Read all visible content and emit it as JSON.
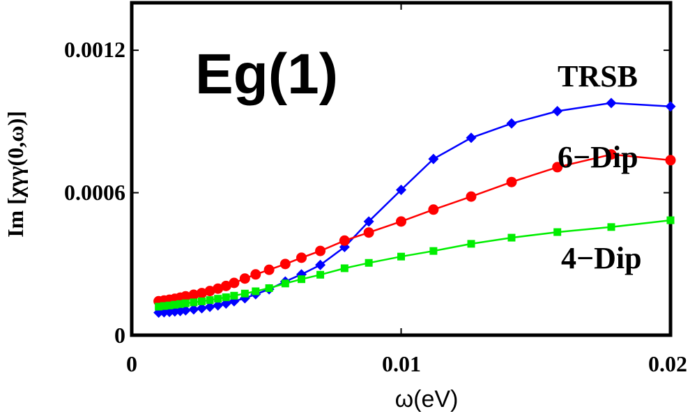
{
  "chart_data": {
    "type": "line",
    "title": "Eg(1)",
    "xlabel": "ω(eV)",
    "ylabel": "Im [χγγ(0,ω)]",
    "xlim": [
      0,
      0.02
    ],
    "ylim": [
      0,
      0.0014
    ],
    "x_ticks": [
      0,
      0.01,
      0.02
    ],
    "x_tick_labels": [
      "0",
      "0.01",
      "0.02"
    ],
    "y_ticks": [
      0,
      0.0006,
      0.0012
    ],
    "y_tick_labels": [
      "0",
      "0.0006",
      "0.0012"
    ],
    "grid": false,
    "series": [
      {
        "name": "TRSB",
        "color": "#0000ff",
        "marker": "diamond",
        "x": [
          0.001,
          0.0012,
          0.0014,
          0.0016,
          0.0018,
          0.002,
          0.0023,
          0.0026,
          0.0029,
          0.0032,
          0.0035,
          0.0038,
          0.0042,
          0.0046,
          0.0051,
          0.0057,
          0.0063,
          0.007,
          0.0079,
          0.0088,
          0.01,
          0.0112,
          0.0126,
          0.0141,
          0.0158,
          0.0178,
          0.02
        ],
        "y": [
          9.51e-05,
          9.65e-05,
          9.8e-05,
          9.99e-05,
          0.0001018,
          0.0001044,
          0.0001086,
          0.0001134,
          0.0001191,
          0.0001253,
          0.0001332,
          0.0001428,
          0.0001557,
          0.0001723,
          0.0001935,
          0.000226,
          0.0002562,
          0.0002957,
          0.0003714,
          0.0004789,
          0.0006119,
          0.0007423,
          0.0008313,
          0.0008918,
          0.0009435,
          0.0009778,
          0.0009636
        ]
      },
      {
        "name": "6−Dip",
        "color": "#ff0000",
        "marker": "circle",
        "x": [
          0.001,
          0.0012,
          0.0014,
          0.0016,
          0.0018,
          0.002,
          0.0023,
          0.0026,
          0.0029,
          0.0032,
          0.0035,
          0.0038,
          0.0042,
          0.0046,
          0.0051,
          0.0057,
          0.0063,
          0.007,
          0.0079,
          0.0088,
          0.01,
          0.0112,
          0.0126,
          0.0141,
          0.0158,
          0.0178,
          0.02
        ],
        "y": [
          0.0001431,
          0.0001459,
          0.0001494,
          0.0001532,
          0.0001581,
          0.0001637,
          0.0001701,
          0.0001773,
          0.000186,
          0.000196,
          0.0002073,
          0.0002201,
          0.0002386,
          0.000256,
          0.0002754,
          0.0002998,
          0.0003262,
          0.0003548,
          0.0003983,
          0.0004323,
          0.0004789,
          0.000529,
          0.0005837,
          0.000645,
          0.0007076,
          0.0007614,
          0.0007369
        ]
      },
      {
        "name": "4−Dip",
        "color": "#00ee00",
        "marker": "square",
        "x": [
          0.001,
          0.0012,
          0.0014,
          0.0016,
          0.0018,
          0.002,
          0.0023,
          0.0026,
          0.0029,
          0.0032,
          0.0035,
          0.0038,
          0.0042,
          0.0046,
          0.0051,
          0.0057,
          0.0063,
          0.007,
          0.0079,
          0.0088,
          0.01,
          0.0112,
          0.0126,
          0.0141,
          0.0158,
          0.0178,
          0.02
        ],
        "y": [
          0.0001201,
          0.0001229,
          0.0001252,
          0.0001283,
          0.0001312,
          0.0001343,
          0.0001381,
          0.0001426,
          0.0001478,
          0.0001535,
          0.0001596,
          0.0001663,
          0.0001752,
          0.0001849,
          0.0001981,
          0.0002177,
          0.0002357,
          0.0002545,
          0.0002819,
          0.0003045,
          0.000331,
          0.0003546,
          0.0003848,
          0.0004107,
          0.0004342,
          0.0004555,
          0.0004841
        ]
      }
    ],
    "annotations": [
      "TRSB",
      "6−Dip",
      "4−Dip"
    ]
  }
}
